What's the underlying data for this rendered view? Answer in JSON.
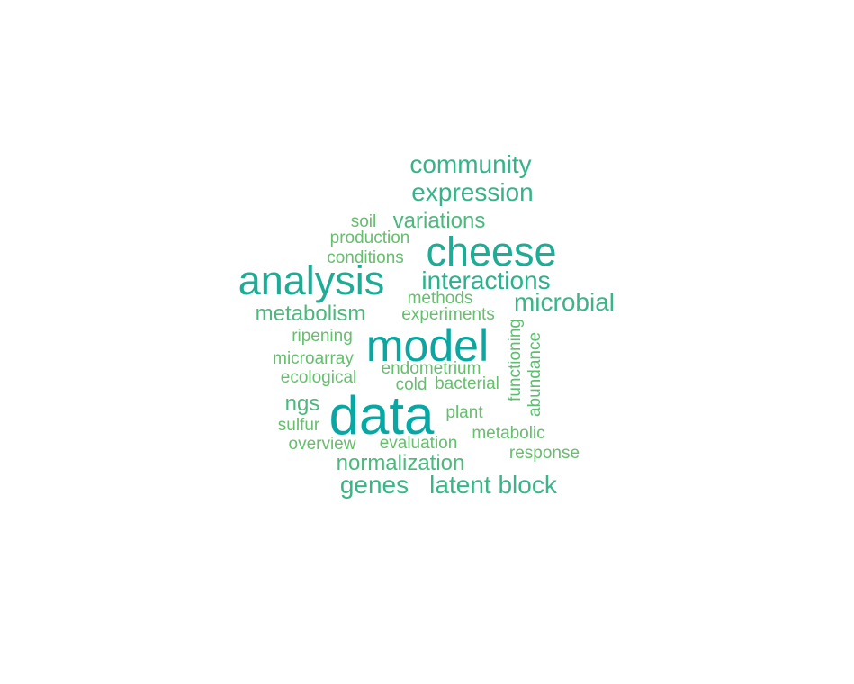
{
  "word_cloud": {
    "words": [
      {
        "text": "data",
        "size": "xxl",
        "color": "#07A7A4"
      },
      {
        "text": "model",
        "size": "xl",
        "color": "#0BA6A0"
      },
      {
        "text": "cheese",
        "size": "l",
        "color": "#1EAC96"
      },
      {
        "text": "analysis",
        "size": "l",
        "color": "#1EAC96"
      },
      {
        "text": "interactions",
        "size": "m",
        "color": "#2CB18E"
      },
      {
        "text": "community",
        "size": "m",
        "color": "#35B48A"
      },
      {
        "text": "expression",
        "size": "m",
        "color": "#35B48A"
      },
      {
        "text": "microbial",
        "size": "m",
        "color": "#39B587"
      },
      {
        "text": "latent block",
        "size": "m",
        "color": "#39B587"
      },
      {
        "text": "genes",
        "size": "m",
        "color": "#3AB586"
      },
      {
        "text": "normalization",
        "size": "s",
        "color": "#4BB97D"
      },
      {
        "text": "metabolism",
        "size": "s",
        "color": "#4BB97D"
      },
      {
        "text": "variations",
        "size": "s",
        "color": "#4BB97D"
      },
      {
        "text": "ngs",
        "size": "s",
        "color": "#4BB97D"
      },
      {
        "text": "functioning",
        "size": "xs",
        "color": "#5FBD72"
      },
      {
        "text": "abundance",
        "size": "xs",
        "color": "#5FBD72"
      },
      {
        "text": "soil",
        "size": "xs",
        "color": "#66BE6E"
      },
      {
        "text": "production",
        "size": "xs",
        "color": "#66BE6E"
      },
      {
        "text": "conditions",
        "size": "xs",
        "color": "#66BE6E"
      },
      {
        "text": "methods",
        "size": "xs",
        "color": "#66BE6E"
      },
      {
        "text": "experiments",
        "size": "xs",
        "color": "#66BE6E"
      },
      {
        "text": "ripening",
        "size": "xs",
        "color": "#66BE6E"
      },
      {
        "text": "microarray",
        "size": "xs",
        "color": "#66BE6E"
      },
      {
        "text": "endometrium",
        "size": "xs",
        "color": "#66BE6E"
      },
      {
        "text": "ecological",
        "size": "xs",
        "color": "#66BE6E"
      },
      {
        "text": "cold",
        "size": "xs",
        "color": "#66BE6E"
      },
      {
        "text": "bacterial",
        "size": "xs",
        "color": "#66BE6E"
      },
      {
        "text": "plant",
        "size": "xs",
        "color": "#66BE6E"
      },
      {
        "text": "sulfur",
        "size": "xs",
        "color": "#66BE6E"
      },
      {
        "text": "metabolic",
        "size": "xs",
        "color": "#66BE6E"
      },
      {
        "text": "overview",
        "size": "xs",
        "color": "#66BE6E"
      },
      {
        "text": "evaluation",
        "size": "xs",
        "color": "#66BE6E"
      },
      {
        "text": "response",
        "size": "xs",
        "color": "#66BE6E"
      }
    ]
  }
}
